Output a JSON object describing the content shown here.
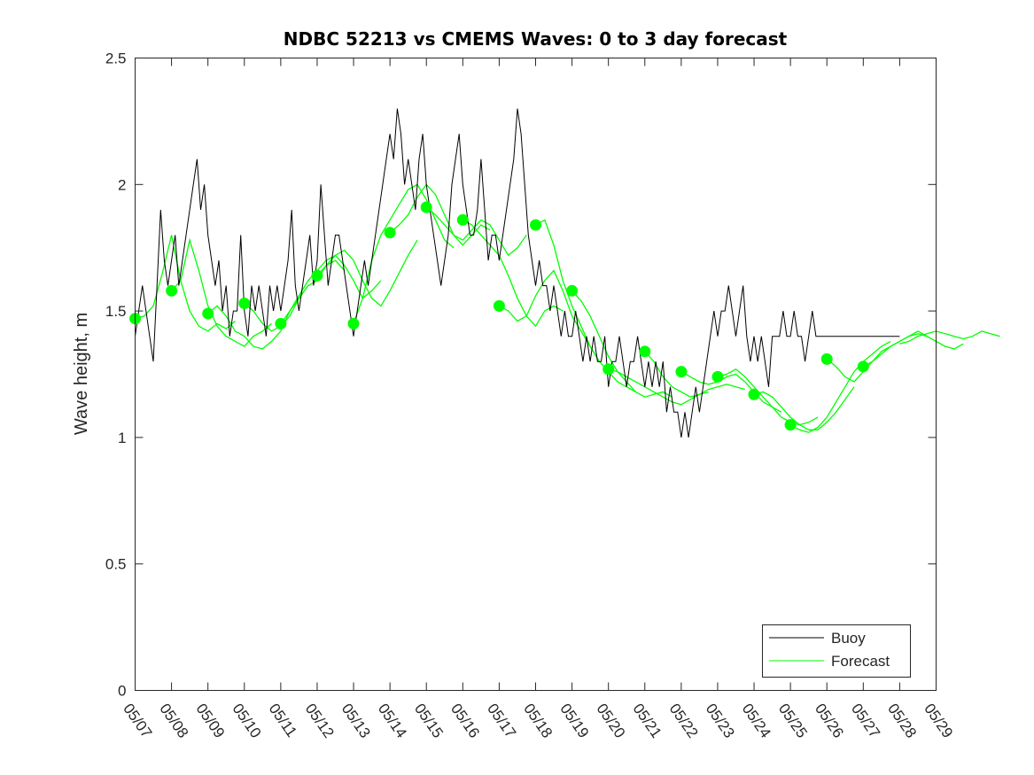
{
  "chart_data": {
    "type": "line",
    "title": "NDBC 52213 vs CMEMS Waves: 0 to 3 day forecast",
    "xlabel": "",
    "ylabel": "Wave height, m",
    "xlim": [
      "05/07",
      "05/29"
    ],
    "ylim": [
      0,
      2.5
    ],
    "x_tick_labels": [
      "05/07",
      "05/08",
      "05/09",
      "05/10",
      "05/11",
      "05/12",
      "05/13",
      "05/14",
      "05/15",
      "05/16",
      "05/17",
      "05/18",
      "05/19",
      "05/20",
      "05/21",
      "05/22",
      "05/23",
      "05/24",
      "05/25",
      "05/26",
      "05/27",
      "05/28",
      "05/29"
    ],
    "y_ticks": [
      0,
      0.5,
      1,
      1.5,
      2,
      2.5
    ],
    "y_tick_labels": [
      "0",
      "0.5",
      "1",
      "1.5",
      "2",
      "2.5"
    ],
    "grid": false,
    "legend_position": "bottom-right",
    "colors": {
      "buoy": "#000000",
      "forecast": "#00ff00"
    },
    "series": [
      {
        "name": "Buoy",
        "day": [
          0,
          0.1,
          0.2,
          0.3,
          0.4,
          0.5,
          0.6,
          0.7,
          0.8,
          0.9,
          1.0,
          1.1,
          1.2,
          1.3,
          1.4,
          1.5,
          1.6,
          1.7,
          1.8,
          1.9,
          2.0,
          2.1,
          2.2,
          2.3,
          2.4,
          2.5,
          2.6,
          2.7,
          2.8,
          2.9,
          3.0,
          3.1,
          3.2,
          3.3,
          3.4,
          3.5,
          3.6,
          3.7,
          3.8,
          3.9,
          4.0,
          4.1,
          4.2,
          4.3,
          4.4,
          4.5,
          4.6,
          4.7,
          4.8,
          4.9,
          5.0,
          5.1,
          5.2,
          5.3,
          5.4,
          5.5,
          5.6,
          5.7,
          5.8,
          5.9,
          6.0,
          6.1,
          6.2,
          6.3,
          6.4,
          6.5,
          6.6,
          6.7,
          6.8,
          6.9,
          7.0,
          7.1,
          7.2,
          7.3,
          7.4,
          7.5,
          7.6,
          7.7,
          7.8,
          7.9,
          8.0,
          8.1,
          8.2,
          8.3,
          8.4,
          8.5,
          8.6,
          8.7,
          8.8,
          8.9,
          9.0,
          9.1,
          9.2,
          9.3,
          9.4,
          9.5,
          9.6,
          9.7,
          9.8,
          9.9,
          10.0,
          10.1,
          10.2,
          10.3,
          10.4,
          10.5,
          10.6,
          10.7,
          10.8,
          10.9,
          11.0,
          11.1,
          11.2,
          11.3,
          11.4,
          11.5,
          11.6,
          11.7,
          11.8,
          11.9,
          12.0,
          12.1,
          12.2,
          12.3,
          12.4,
          12.5,
          12.6,
          12.7,
          12.8,
          12.9,
          13.0,
          13.1,
          13.2,
          13.3,
          13.4,
          13.5,
          13.6,
          13.7,
          13.8,
          13.9,
          14.0,
          14.1,
          14.2,
          14.3,
          14.4,
          14.5,
          14.6,
          14.7,
          14.8,
          14.9,
          15.0,
          15.1,
          15.2,
          15.3,
          15.4,
          15.5,
          15.6,
          15.7,
          15.8,
          15.9,
          16.0,
          16.1,
          16.2,
          16.3,
          16.4,
          16.5,
          16.6,
          16.7,
          16.8,
          16.9,
          17.0,
          17.1,
          17.2,
          17.3,
          17.4,
          17.5,
          17.6,
          17.7,
          17.8,
          17.9,
          18.0,
          18.1,
          18.2,
          18.3,
          18.4,
          18.5,
          18.6,
          18.7,
          18.8,
          18.9,
          19.0,
          19.1,
          19.2,
          19.3,
          19.4,
          19.5,
          19.6,
          19.7,
          19.8,
          19.9,
          20.0,
          20.1,
          20.2,
          20.3,
          20.4,
          20.5,
          20.6,
          20.7,
          20.8,
          20.9,
          21.0
        ],
        "values": [
          1.4,
          1.5,
          1.6,
          1.5,
          1.4,
          1.3,
          1.6,
          1.9,
          1.7,
          1.6,
          1.7,
          1.8,
          1.6,
          1.7,
          1.8,
          1.9,
          2.0,
          2.1,
          1.9,
          2.0,
          1.8,
          1.7,
          1.6,
          1.7,
          1.5,
          1.6,
          1.4,
          1.5,
          1.5,
          1.8,
          1.5,
          1.4,
          1.6,
          1.5,
          1.6,
          1.5,
          1.4,
          1.6,
          1.5,
          1.6,
          1.5,
          1.6,
          1.7,
          1.9,
          1.6,
          1.5,
          1.6,
          1.7,
          1.8,
          1.6,
          1.7,
          2.0,
          1.8,
          1.6,
          1.7,
          1.8,
          1.8,
          1.7,
          1.6,
          1.5,
          1.4,
          1.5,
          1.6,
          1.7,
          1.6,
          1.7,
          1.8,
          1.9,
          2.0,
          2.1,
          2.2,
          2.1,
          2.3,
          2.2,
          2.0,
          2.1,
          2.0,
          1.9,
          2.1,
          2.2,
          2.0,
          1.9,
          1.8,
          1.7,
          1.6,
          1.7,
          1.8,
          2.0,
          2.1,
          2.2,
          2.0,
          1.9,
          1.8,
          1.8,
          1.9,
          2.1,
          1.9,
          1.7,
          1.8,
          1.8,
          1.7,
          1.8,
          1.9,
          2.0,
          2.1,
          2.3,
          2.2,
          2.0,
          1.8,
          1.7,
          1.6,
          1.7,
          1.6,
          1.6,
          1.5,
          1.6,
          1.5,
          1.4,
          1.5,
          1.4,
          1.4,
          1.5,
          1.4,
          1.3,
          1.4,
          1.3,
          1.4,
          1.3,
          1.3,
          1.4,
          1.2,
          1.3,
          1.3,
          1.4,
          1.3,
          1.2,
          1.3,
          1.3,
          1.4,
          1.3,
          1.2,
          1.3,
          1.2,
          1.3,
          1.2,
          1.3,
          1.1,
          1.2,
          1.1,
          1.1,
          1.0,
          1.1,
          1.0,
          1.1,
          1.2,
          1.1,
          1.2,
          1.3,
          1.4,
          1.5,
          1.4,
          1.5,
          1.5,
          1.6,
          1.5,
          1.4,
          1.5,
          1.6,
          1.4,
          1.3,
          1.4,
          1.3,
          1.4,
          1.3,
          1.2,
          1.4,
          1.4,
          1.4,
          1.5,
          1.4,
          1.4,
          1.5,
          1.4,
          1.4,
          1.3,
          1.4,
          1.5,
          1.4,
          1.4,
          1.4,
          1.4,
          1.4,
          1.4,
          1.4,
          1.4,
          1.4,
          1.4,
          1.4,
          1.4,
          1.4,
          1.4,
          1.4,
          1.4,
          1.4,
          1.4,
          1.4,
          1.4,
          1.4,
          1.4,
          1.4,
          1.4,
          1.4,
          1.4,
          1.4,
          1.4,
          1.4,
          1.4
        ]
      },
      {
        "name": "Forecast",
        "runs": [
          {
            "start_day": 0,
            "values": [
              1.47,
              1.48,
              1.52,
              1.65,
              1.8,
              1.62,
              1.5,
              1.44,
              1.42,
              1.45,
              1.43,
              1.46
            ]
          },
          {
            "start_day": 1,
            "values": [
              1.58,
              1.62,
              1.78,
              1.66,
              1.52,
              1.44,
              1.4,
              1.38,
              1.36,
              1.4,
              1.42,
              1.45
            ]
          },
          {
            "start_day": 2,
            "values": [
              1.49,
              1.52,
              1.48,
              1.42,
              1.4,
              1.36,
              1.35,
              1.38,
              1.42,
              1.5,
              1.55,
              1.6
            ]
          },
          {
            "start_day": 3,
            "values": [
              1.53,
              1.5,
              1.45,
              1.42,
              1.44,
              1.48,
              1.55,
              1.6,
              1.62,
              1.68,
              1.7,
              1.66
            ]
          },
          {
            "start_day": 4,
            "values": [
              1.45,
              1.5,
              1.56,
              1.62,
              1.66,
              1.7,
              1.72,
              1.68,
              1.62,
              1.55,
              1.58,
              1.62
            ]
          },
          {
            "start_day": 5,
            "values": [
              1.64,
              1.68,
              1.72,
              1.74,
              1.7,
              1.62,
              1.55,
              1.52,
              1.58,
              1.65,
              1.72,
              1.78
            ]
          },
          {
            "start_day": 6,
            "values": [
              1.45,
              1.55,
              1.7,
              1.8,
              1.86,
              1.92,
              1.98,
              2.0,
              1.94,
              1.86,
              1.78,
              1.75
            ]
          },
          {
            "start_day": 7,
            "values": [
              1.81,
              1.84,
              1.88,
              1.95,
              2.0,
              1.96,
              1.88,
              1.8,
              1.76,
              1.8,
              1.84,
              1.82
            ]
          },
          {
            "start_day": 8,
            "values": [
              1.91,
              1.88,
              1.84,
              1.8,
              1.78,
              1.82,
              1.86,
              1.84,
              1.78,
              1.72,
              1.75,
              1.8
            ]
          },
          {
            "start_day": 9,
            "values": [
              1.86,
              1.84,
              1.8,
              1.76,
              1.72,
              1.64,
              1.55,
              1.48,
              1.44,
              1.5,
              1.52,
              1.5
            ]
          },
          {
            "start_day": 10,
            "values": [
              1.52,
              1.5,
              1.46,
              1.48,
              1.56,
              1.62,
              1.66,
              1.58,
              1.48,
              1.42,
              1.36,
              1.3
            ]
          },
          {
            "start_day": 11,
            "values": [
              1.84,
              1.86,
              1.76,
              1.62,
              1.52,
              1.44,
              1.36,
              1.3,
              1.26,
              1.22,
              1.2,
              1.18
            ]
          },
          {
            "start_day": 12,
            "values": [
              1.58,
              1.54,
              1.48,
              1.4,
              1.32,
              1.26,
              1.22,
              1.18,
              1.16,
              1.17,
              1.18,
              1.16
            ]
          },
          {
            "start_day": 13,
            "values": [
              1.27,
              1.26,
              1.24,
              1.22,
              1.2,
              1.18,
              1.16,
              1.14,
              1.13,
              1.15,
              1.17,
              1.18
            ]
          },
          {
            "start_day": 14,
            "values": [
              1.34,
              1.3,
              1.24,
              1.2,
              1.18,
              1.16,
              1.17,
              1.19,
              1.2,
              1.21,
              1.2,
              1.19
            ]
          },
          {
            "start_day": 15,
            "values": [
              1.26,
              1.24,
              1.22,
              1.21,
              1.22,
              1.24,
              1.25,
              1.22,
              1.18,
              1.14,
              1.12,
              1.1
            ]
          },
          {
            "start_day": 16,
            "values": [
              1.24,
              1.25,
              1.27,
              1.24,
              1.2,
              1.16,
              1.12,
              1.08,
              1.06,
              1.05,
              1.06,
              1.08
            ]
          },
          {
            "start_day": 17,
            "values": [
              1.17,
              1.18,
              1.16,
              1.12,
              1.08,
              1.05,
              1.03,
              1.03,
              1.06,
              1.1,
              1.15,
              1.2
            ]
          },
          {
            "start_day": 18,
            "values": [
              1.05,
              1.03,
              1.02,
              1.04,
              1.08,
              1.14,
              1.2,
              1.26,
              1.3,
              1.33,
              1.36,
              1.38
            ]
          },
          {
            "start_day": 19,
            "values": [
              1.31,
              1.28,
              1.24,
              1.22,
              1.26,
              1.3,
              1.34,
              1.36,
              1.38,
              1.4,
              1.42,
              1.4
            ]
          },
          {
            "start_day": 20,
            "values": [
              1.28,
              1.3,
              1.33,
              1.36,
              1.38,
              1.4,
              1.41,
              1.4,
              1.38,
              1.36,
              1.35,
              1.37
            ]
          },
          {
            "start_day": 21,
            "values": [
              1.37,
              1.38,
              1.4,
              1.41,
              1.42,
              1.41,
              1.4,
              1.39,
              1.4,
              1.42,
              1.41,
              1.4
            ]
          }
        ],
        "run_step_days": 0.25,
        "run_starts": [
          {
            "day": 0,
            "value": 1.47
          },
          {
            "day": 1,
            "value": 1.58
          },
          {
            "day": 2,
            "value": 1.49
          },
          {
            "day": 3,
            "value": 1.53
          },
          {
            "day": 4,
            "value": 1.45
          },
          {
            "day": 5,
            "value": 1.64
          },
          {
            "day": 6,
            "value": 1.45
          },
          {
            "day": 7,
            "value": 1.81
          },
          {
            "day": 8,
            "value": 1.91
          },
          {
            "day": 9,
            "value": 1.86
          },
          {
            "day": 10,
            "value": 1.52
          },
          {
            "day": 11,
            "value": 1.84
          },
          {
            "day": 12,
            "value": 1.58
          },
          {
            "day": 13,
            "value": 1.27
          },
          {
            "day": 14,
            "value": 1.34
          },
          {
            "day": 15,
            "value": 1.26
          },
          {
            "day": 16,
            "value": 1.24
          },
          {
            "day": 17,
            "value": 1.17
          },
          {
            "day": 18,
            "value": 1.05
          },
          {
            "day": 19,
            "value": 1.31
          },
          {
            "day": 20,
            "value": 1.28
          }
        ]
      }
    ],
    "legend": [
      {
        "label": "Buoy",
        "color": "#000000"
      },
      {
        "label": "Forecast",
        "color": "#00ff00"
      }
    ]
  }
}
